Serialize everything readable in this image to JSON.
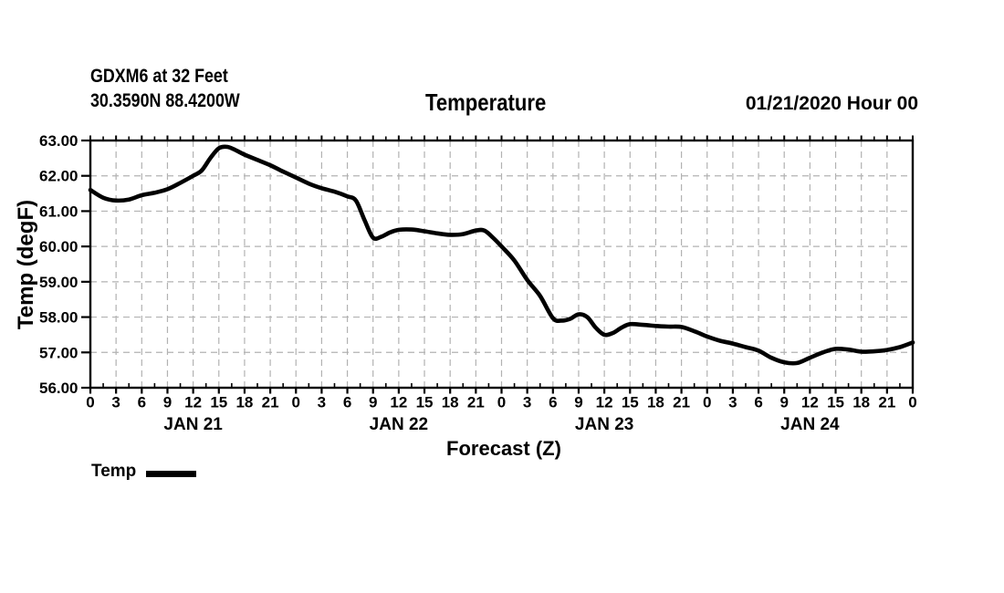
{
  "header": {
    "station": "GDXM6 at 32 Feet",
    "location": "30.3590N 88.4200W",
    "title": "Temperature",
    "run_time": "01/21/2020 Hour 00"
  },
  "axes": {
    "y_label": "Temp (degF)",
    "x_label": "Forecast (Z)",
    "y_ticks": [
      "63.00",
      "62.00",
      "61.00",
      "60.00",
      "59.00",
      "58.00",
      "57.00",
      "56.00"
    ],
    "x_hour_labels": [
      "0",
      "3",
      "6",
      "9",
      "12",
      "15",
      "18",
      "21",
      "0",
      "3",
      "6",
      "9",
      "12",
      "15",
      "18",
      "21",
      "0",
      "3",
      "6",
      "9",
      "12",
      "15",
      "18",
      "21",
      "0",
      "3",
      "6",
      "9",
      "12",
      "15",
      "18",
      "21",
      "0"
    ],
    "day_labels": [
      "JAN 21",
      "JAN 22",
      "JAN 23",
      "JAN 24"
    ],
    "day_center_hours": [
      12,
      36,
      60,
      84
    ]
  },
  "legend": {
    "label": "Temp"
  },
  "colors": {
    "line": "#000000",
    "grid": "#b2b2b2",
    "axis": "#000000",
    "text": "#000000",
    "background": "#ffffff"
  },
  "chart_data": {
    "type": "line",
    "title": "Temperature",
    "xlabel": "Forecast (Z)",
    "ylabel": "Temp (degF)",
    "xlim": [
      0,
      96
    ],
    "ylim": [
      56,
      63
    ],
    "x_unit": "forecast hour (Z), 3-hourly ticks over 4 days starting 01/21/2020 00Z",
    "grid": true,
    "legend_position": "bottom-left",
    "series": [
      {
        "name": "Temp",
        "x": [
          0,
          1.5,
          3,
          4.5,
          6,
          7.5,
          9,
          10.5,
          12,
          13,
          14,
          15,
          16,
          17,
          18,
          19.5,
          21,
          22.5,
          24,
          25.5,
          27,
          28.5,
          30,
          31,
          32,
          33,
          34,
          35,
          36,
          37.5,
          39,
          40.5,
          42,
          43.5,
          45,
          46,
          47,
          48,
          49.5,
          51,
          52.5,
          54,
          55,
          56,
          57,
          58,
          59,
          60,
          61,
          62,
          63,
          64.5,
          66,
          67.5,
          69,
          70.5,
          72,
          73.5,
          75,
          76.5,
          78,
          79.5,
          81,
          82.5,
          84,
          85.5,
          87,
          88.5,
          90,
          91.5,
          93,
          94.5,
          96
        ],
        "values": [
          61.6,
          61.38,
          61.3,
          61.33,
          61.45,
          61.52,
          61.62,
          61.8,
          62.0,
          62.15,
          62.5,
          62.78,
          62.82,
          62.72,
          62.6,
          62.45,
          62.3,
          62.12,
          61.95,
          61.78,
          61.65,
          61.55,
          61.42,
          61.3,
          60.75,
          60.25,
          60.28,
          60.4,
          60.47,
          60.48,
          60.43,
          60.37,
          60.33,
          60.35,
          60.45,
          60.45,
          60.25,
          60.0,
          59.6,
          59.05,
          58.6,
          57.97,
          57.9,
          57.95,
          58.08,
          58.0,
          57.7,
          57.5,
          57.55,
          57.7,
          57.8,
          57.78,
          57.75,
          57.73,
          57.72,
          57.6,
          57.45,
          57.33,
          57.25,
          57.15,
          57.05,
          56.85,
          56.72,
          56.7,
          56.85,
          57.0,
          57.1,
          57.08,
          57.02,
          57.03,
          57.07,
          57.15,
          57.28
        ]
      }
    ]
  }
}
